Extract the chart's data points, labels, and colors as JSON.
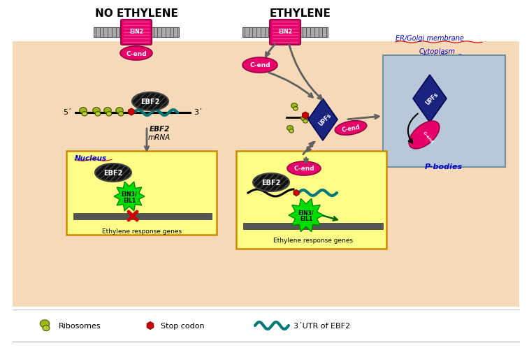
{
  "bg_peach": "#F5D9B8",
  "nucleus_yellow": "#FFFF88",
  "pbody_blue": "#B8C8D8",
  "magenta": "#E8006A",
  "magenta_dark": "#990044",
  "white": "#FFFFFF",
  "black": "#111111",
  "teal": "#007878",
  "navy": "#1a237e",
  "green_bright": "#00DD00",
  "green_dark": "#006600",
  "red": "#CC0000",
  "gray_membrane": "#999999",
  "gray_arrow": "#606060",
  "ribosome_big": "#99BB11",
  "ribosome_small": "#BBCC33",
  "gold_border": "#CC8800",
  "blue_label": "#0000CC",
  "title_left": "NO ETHYLENE",
  "title_right": "ETHYLENE",
  "label_er": "ER/Golgi membrane",
  "label_cytoplasm": "Cytoplasm",
  "label_nucleus": "Nucleus",
  "label_pbodies": "P-bodies",
  "label_ebf2": "EBF2",
  "label_cend": "C-end",
  "label_upfs": "UPFs",
  "label_ein2": "EIN2",
  "label_ein3": "EIN3/",
  "label_eil1": "EIL1",
  "label_ebf2mrna": "EBF2\nmRNA",
  "label_ethgenes": "Ethylene response genes",
  "legend_rib": "Ribosomes",
  "legend_stop": "Stop codon",
  "legend_utr": "3´UTR of EBF2"
}
